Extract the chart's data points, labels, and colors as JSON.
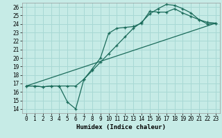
{
  "xlabel": "Humidex (Indice chaleur)",
  "bg_color": "#c6ebe6",
  "grid_color": "#a8d8d4",
  "line_color": "#1a6b5a",
  "xlim": [
    -0.5,
    23.5
  ],
  "ylim": [
    13.5,
    26.5
  ],
  "xticks": [
    0,
    1,
    2,
    3,
    4,
    5,
    6,
    7,
    8,
    9,
    10,
    11,
    12,
    13,
    14,
    15,
    16,
    17,
    18,
    19,
    20,
    21,
    22,
    23
  ],
  "yticks": [
    14,
    15,
    16,
    17,
    18,
    19,
    20,
    21,
    22,
    23,
    24,
    25,
    26
  ],
  "line1_x": [
    0,
    1,
    2,
    3,
    4,
    5,
    6,
    7,
    8,
    9,
    10,
    11,
    12,
    13,
    14,
    15,
    16,
    17,
    18,
    19,
    20,
    21,
    22,
    23
  ],
  "line1_y": [
    16.7,
    16.7,
    16.6,
    16.7,
    16.7,
    16.7,
    16.7,
    17.5,
    18.5,
    19.5,
    20.5,
    21.5,
    22.5,
    23.5,
    24.2,
    25.2,
    25.8,
    26.3,
    26.2,
    25.8,
    25.3,
    24.5,
    24.2,
    24.1
  ],
  "line2_x": [
    0,
    1,
    2,
    3,
    4,
    5,
    6,
    7,
    8,
    9,
    10,
    11,
    12,
    13,
    14,
    15,
    16,
    17,
    18,
    19,
    20,
    21,
    22,
    23
  ],
  "line2_y": [
    16.7,
    16.7,
    16.6,
    16.7,
    16.7,
    14.8,
    14.0,
    17.5,
    18.7,
    20.0,
    22.9,
    23.5,
    23.6,
    23.7,
    24.1,
    25.5,
    25.4,
    25.4,
    25.8,
    25.3,
    24.9,
    24.5,
    24.0,
    24.1
  ],
  "line3_x": [
    0,
    23
  ],
  "line3_y": [
    16.7,
    24.1
  ]
}
